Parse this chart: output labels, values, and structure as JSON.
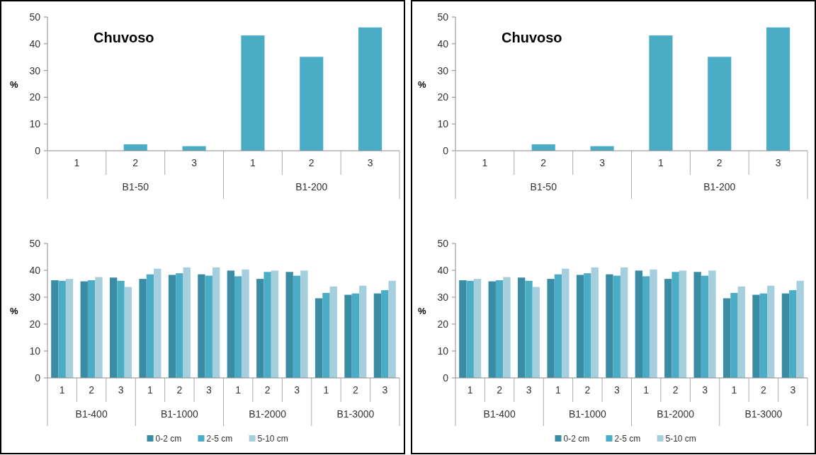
{
  "chart_data": [
    {
      "type": "bar",
      "title": "Chuvoso",
      "ylabel": "%",
      "categories": [
        "1",
        "2",
        "3",
        "1",
        "2",
        "3"
      ],
      "annotations": [
        "B1-50",
        "B1-200"
      ],
      "series": [
        {
          "color": "#4bacc6",
          "values": [
            0,
            2.4,
            1.7,
            43.1,
            35.1,
            46.1
          ]
        }
      ],
      "ylim": [
        0,
        50
      ],
      "yticks": [
        0,
        10,
        20,
        30,
        40,
        50
      ],
      "legend": false
    },
    {
      "type": "bar",
      "title": "Chuvoso",
      "ylabel": "%",
      "categories": [
        "1",
        "2",
        "3",
        "1",
        "2",
        "3"
      ],
      "annotations": [
        "B1-50",
        "B1-200"
      ],
      "series": [
        {
          "color": "#4bacc6",
          "values": [
            0,
            2.4,
            1.7,
            43.1,
            35.1,
            46.1
          ]
        }
      ],
      "ylim": [
        0,
        50
      ],
      "yticks": [
        0,
        10,
        20,
        30,
        40,
        50
      ],
      "legend": false
    },
    {
      "type": "bar",
      "ylabel": "%",
      "categories": [
        "1",
        "2",
        "3",
        "1",
        "2",
        "3",
        "1",
        "2",
        "3",
        "1",
        "2",
        "3"
      ],
      "annotations": [
        "B1-400",
        "B1-1000",
        "B1-2000",
        "B1-3000"
      ],
      "series": [
        {
          "name": "0-2 cm",
          "color": "#3a8ca4",
          "values": [
            36.3,
            35.9,
            37.3,
            36.8,
            38.3,
            38.5,
            39.9,
            36.8,
            39.4,
            29.6,
            30.9,
            31.4
          ]
        },
        {
          "name": "2-5 cm",
          "color": "#4bacc6",
          "values": [
            36.1,
            36.3,
            36.1,
            38.5,
            38.9,
            38.0,
            37.8,
            39.4,
            38.0,
            31.6,
            31.4,
            32.6
          ]
        },
        {
          "name": "5-10 cm",
          "color": "#a5cfdd",
          "values": [
            36.8,
            37.5,
            33.8,
            40.6,
            41.1,
            41.1,
            40.3,
            39.9,
            39.9,
            34.0,
            34.3,
            36.1
          ]
        }
      ],
      "ylim": [
        0,
        50
      ],
      "yticks": [
        0,
        10,
        20,
        30,
        40,
        50
      ],
      "legend": "bottom"
    },
    {
      "type": "bar",
      "ylabel": "%",
      "categories": [
        "1",
        "2",
        "3",
        "1",
        "2",
        "3",
        "1",
        "2",
        "3",
        "1",
        "2",
        "3"
      ],
      "annotations": [
        "B1-400",
        "B1-1000",
        "B1-2000",
        "B1-3000"
      ],
      "series": [
        {
          "name": "0-2 cm",
          "color": "#3a8ca4",
          "values": [
            36.3,
            35.9,
            37.3,
            36.8,
            38.3,
            38.5,
            39.9,
            36.8,
            39.4,
            29.6,
            30.9,
            31.4
          ]
        },
        {
          "name": "2-5 cm",
          "color": "#4bacc6",
          "values": [
            36.1,
            36.3,
            36.1,
            38.5,
            38.9,
            38.0,
            37.8,
            39.4,
            38.0,
            31.6,
            31.4,
            32.6
          ]
        },
        {
          "name": "5-10 cm",
          "color": "#a5cfdd",
          "values": [
            36.8,
            37.5,
            33.8,
            40.6,
            41.1,
            41.1,
            40.3,
            39.9,
            39.9,
            34.0,
            34.3,
            36.1
          ]
        }
      ],
      "ylim": [
        0,
        50
      ],
      "yticks": [
        0,
        10,
        20,
        30,
        40,
        50
      ],
      "legend": "bottom"
    }
  ]
}
